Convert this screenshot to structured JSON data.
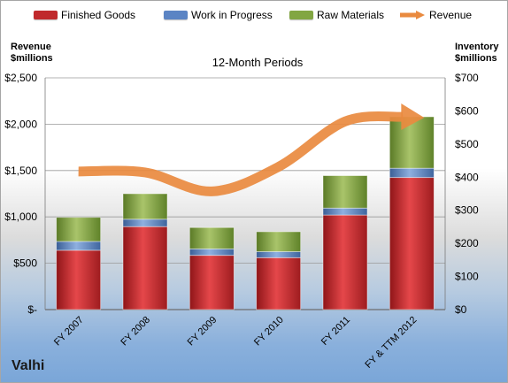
{
  "chart_data": {
    "type": "bar",
    "title": "12-Month Periods",
    "left_axis_title": [
      "Revenue",
      "$millions"
    ],
    "right_axis_title": [
      "Inventory",
      "$millions"
    ],
    "categories": [
      "FY 2007",
      "FY 2008",
      "FY 2009",
      "FY 2010",
      "FY 2011",
      "FY & TTM 2012"
    ],
    "left_ticks": [
      "$-",
      "$500",
      "$1,000",
      "$1,500",
      "$2,000",
      "$2,500"
    ],
    "right_ticks": [
      "$0",
      "$100",
      "$200",
      "$300",
      "$400",
      "$500",
      "$600",
      "$700"
    ],
    "ylim_left": [
      0,
      2500
    ],
    "ylim_right": [
      0,
      700
    ],
    "grid": true,
    "legend_position": "top",
    "series": [
      {
        "name": "Finished Goods",
        "kind": "stacked-bar",
        "axis": "left",
        "color": "#c0292c",
        "values": [
          640,
          895,
          585,
          560,
          1020,
          1425
        ]
      },
      {
        "name": "Work in Progress",
        "kind": "stacked-bar",
        "axis": "left",
        "color": "#5b84c4",
        "values": [
          95,
          80,
          70,
          65,
          75,
          100
        ]
      },
      {
        "name": "Raw Materials",
        "kind": "stacked-bar",
        "axis": "left",
        "color": "#82a642",
        "values": [
          260,
          275,
          230,
          215,
          350,
          555
        ]
      },
      {
        "name": "Revenue",
        "kind": "line",
        "axis": "left",
        "color": "#e98a3f",
        "values": [
          1490,
          1480,
          1275,
          1540,
          2030,
          2080
        ]
      }
    ]
  },
  "brand": "Valhi"
}
